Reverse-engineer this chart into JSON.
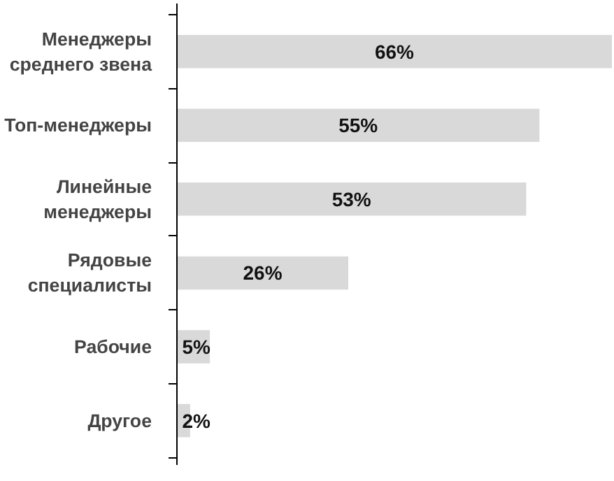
{
  "chart_data": {
    "type": "bar",
    "orientation": "horizontal",
    "data_labels": true,
    "categories": [
      "Менеджеры среднего звена",
      "Топ-менеджеры",
      "Линейные менеджеры",
      "Рядовые специалисты",
      "Рабочие",
      "Другое"
    ],
    "values": [
      66,
      55,
      53,
      26,
      5,
      2
    ],
    "value_labels": [
      "66%",
      "55%",
      "53%",
      "26%",
      "5%",
      "2%"
    ],
    "color": "#d9d9d9"
  }
}
